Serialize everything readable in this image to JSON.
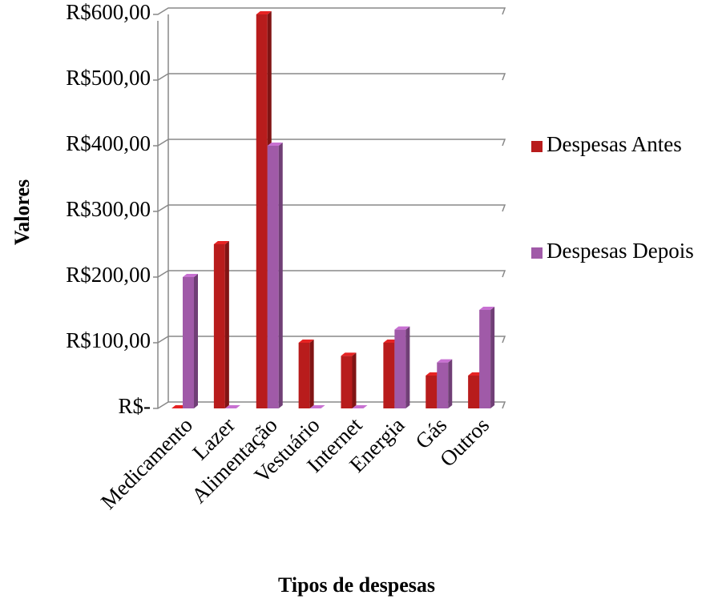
{
  "chart_data": {
    "type": "bar3d",
    "categories": [
      "Medicamento",
      "Lazer",
      "Alimentação",
      "Vestuário",
      "Internet",
      "Energia",
      "Gás",
      "Outros"
    ],
    "series": [
      {
        "name": "Despesas Antes",
        "color": "#b81c1c",
        "values": [
          0,
          250,
          600,
          100,
          80,
          100,
          50,
          50
        ]
      },
      {
        "name": "Despesas Depois",
        "color": "#a05aa8",
        "values": [
          200,
          0,
          400,
          0,
          0,
          120,
          70,
          150
        ]
      }
    ],
    "ylim": [
      0,
      600
    ],
    "yticks": [
      {
        "value": 0,
        "label": "R$-"
      },
      {
        "value": 100,
        "label": "R$100,00"
      },
      {
        "value": 200,
        "label": "R$200,00"
      },
      {
        "value": 300,
        "label": "R$300,00"
      },
      {
        "value": 400,
        "label": "R$400,00"
      },
      {
        "value": 500,
        "label": "R$500,00"
      },
      {
        "value": 600,
        "label": "R$600,00"
      }
    ],
    "y_label": "Valores",
    "x_label": "Tipos de despesas",
    "grid": true,
    "legend": "right"
  }
}
